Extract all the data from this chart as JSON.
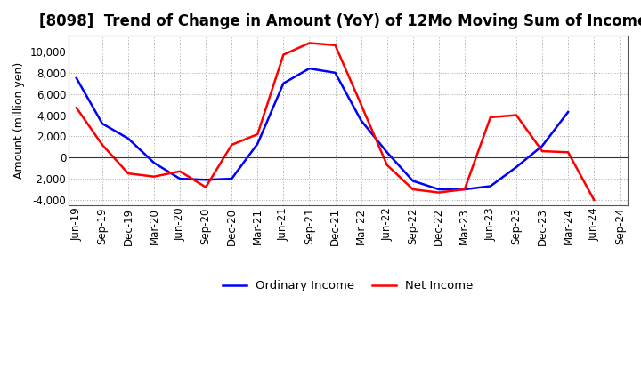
{
  "title": "[8098]  Trend of Change in Amount (YoY) of 12Mo Moving Sum of Incomes",
  "ylabel": "Amount (million yen)",
  "x_labels": [
    "Jun-19",
    "Sep-19",
    "Dec-19",
    "Mar-20",
    "Jun-20",
    "Sep-20",
    "Dec-20",
    "Mar-21",
    "Jun-21",
    "Sep-21",
    "Dec-21",
    "Mar-22",
    "Jun-22",
    "Sep-22",
    "Dec-22",
    "Mar-23",
    "Jun-23",
    "Sep-23",
    "Dec-23",
    "Mar-24",
    "Jun-24",
    "Sep-24"
  ],
  "ordinary_income": [
    7500,
    3200,
    1800,
    -500,
    -2000,
    -2100,
    -2000,
    1300,
    7000,
    8400,
    8000,
    3500,
    500,
    -2200,
    -3000,
    -3000,
    -2700,
    -900,
    1100,
    4300,
    null,
    null
  ],
  "net_income": [
    4700,
    1200,
    -1500,
    -1800,
    -1300,
    -2800,
    1200,
    2200,
    9700,
    10800,
    10600,
    5000,
    -700,
    -3000,
    -3300,
    -3000,
    3800,
    4000,
    600,
    500,
    -4000,
    null
  ],
  "ordinary_income_color": "#0000ff",
  "net_income_color": "#ff0000",
  "background_color": "#ffffff",
  "plot_bg_color": "#ffffff",
  "grid_color": "#aaaaaa",
  "ylim": [
    -4500,
    11500
  ],
  "yticks": [
    -4000,
    -2000,
    0,
    2000,
    4000,
    6000,
    8000,
    10000
  ],
  "legend_labels": [
    "Ordinary Income",
    "Net Income"
  ],
  "title_fontsize": 12,
  "axis_fontsize": 9,
  "tick_fontsize": 8.5
}
